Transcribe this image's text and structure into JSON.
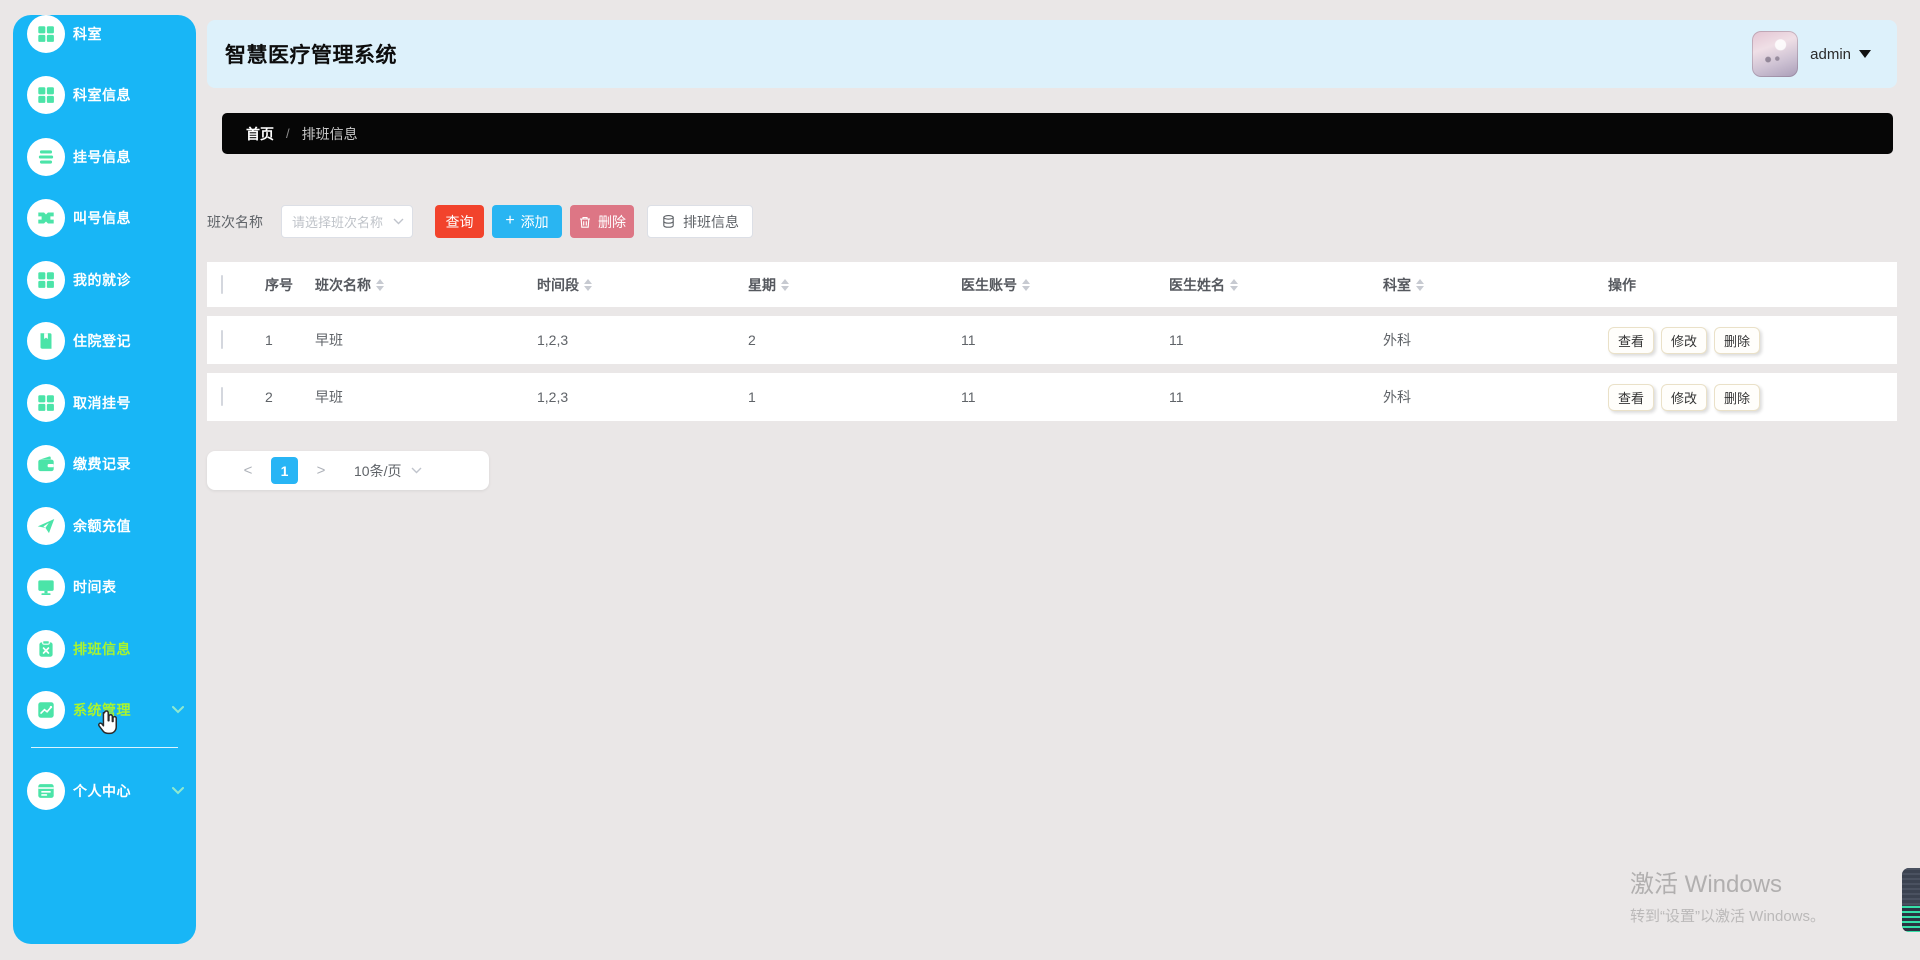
{
  "app": {
    "title": "智慧医疗管理系统",
    "user": "admin"
  },
  "sidebar": {
    "items": [
      {
        "id": "keshi",
        "label": "科室",
        "icon": "grid",
        "active": false,
        "chevron": false
      },
      {
        "id": "keshixinxi",
        "label": "科室信息",
        "icon": "grid",
        "active": false,
        "chevron": false
      },
      {
        "id": "guahaoxinxi",
        "label": "挂号信息",
        "icon": "list",
        "active": false,
        "chevron": false
      },
      {
        "id": "jiaohaoxinxi",
        "label": "叫号信息",
        "icon": "bowtie",
        "active": false,
        "chevron": false
      },
      {
        "id": "wodejiuzhen",
        "label": "我的就诊",
        "icon": "grid",
        "active": false,
        "chevron": false
      },
      {
        "id": "zhuyuandengji",
        "label": "住院登记",
        "icon": "book",
        "active": false,
        "chevron": false
      },
      {
        "id": "quxiaoguahao",
        "label": "取消挂号",
        "icon": "grid",
        "active": false,
        "chevron": false
      },
      {
        "id": "jiaofeijilu",
        "label": "缴费记录",
        "icon": "wallet",
        "active": false,
        "chevron": false
      },
      {
        "id": "yuechongzhi",
        "label": "余额充值",
        "icon": "plane",
        "active": false,
        "chevron": false
      },
      {
        "id": "shijianbiao",
        "label": "时间表",
        "icon": "monitor",
        "active": false,
        "chevron": false
      },
      {
        "id": "paibanxinxi",
        "label": "排班信息",
        "icon": "clipboard",
        "active": true,
        "chevron": false
      },
      {
        "id": "xitongguanli",
        "label": "系统管理",
        "icon": "chart",
        "active": true,
        "chevron": true,
        "divider_after": true
      },
      {
        "id": "gerenzhongxin",
        "label": "个人中心",
        "icon": "card",
        "active": false,
        "chevron": true
      }
    ]
  },
  "breadcrumb": {
    "home": "首页",
    "separator": "/",
    "current": "排班信息"
  },
  "toolbar": {
    "filter_label": "班次名称",
    "select_placeholder": "请选择班次名称",
    "search_label": "查询",
    "add_label": "添加",
    "delete_label": "删除",
    "export_label": "排班信息"
  },
  "table": {
    "columns": [
      {
        "label": "序号",
        "sortable": false
      },
      {
        "label": "班次名称",
        "sortable": true
      },
      {
        "label": "时间段",
        "sortable": true
      },
      {
        "label": "星期",
        "sortable": true
      },
      {
        "label": "医生账号",
        "sortable": true
      },
      {
        "label": "医生姓名",
        "sortable": true
      },
      {
        "label": "科室",
        "sortable": true
      },
      {
        "label": "操作",
        "sortable": false
      }
    ],
    "rows": [
      [
        "1",
        "早班",
        "1,2,3",
        "2",
        "11",
        "11",
        "外科"
      ],
      [
        "2",
        "早班",
        "1,2,3",
        "1",
        "11",
        "11",
        "外科"
      ]
    ],
    "actions": [
      "查看",
      "修改",
      "删除"
    ]
  },
  "pagination": {
    "prev": "<",
    "page": "1",
    "next": ">",
    "page_size": "10条/页"
  },
  "watermark": {
    "line1": "激活 Windows",
    "line2": "转到“设置”以激活 Windows。"
  },
  "colors": {
    "sidebar_blue": "#18b6f6",
    "icon_green": "#4be4a8",
    "active_menu_text": "#a9f42e",
    "header_bg": "#ddf1fb",
    "breadcrumb_bg": "#060606",
    "search_red": "#f2432c",
    "add_blue": "#29b5f2",
    "delete_pink": "#dd7685",
    "pagination_blue": "#28b5f5",
    "page_bg": "#eae7e7"
  }
}
